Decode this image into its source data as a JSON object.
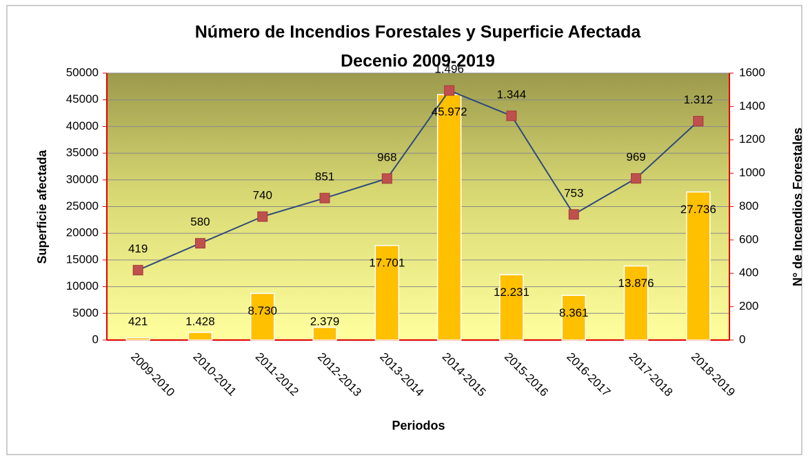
{
  "chart_data": {
    "type": "combo",
    "title": "Número de Incendios Forestales y Superficie Afectada",
    "subtitle": "Decenio 2009-2019",
    "x_label": "Periodos",
    "y_label": "Superficie afectada",
    "y2_label": "N° de Incendios Forestales",
    "categories": [
      "2009-2010",
      "2010-2011",
      "2011-2012",
      "2012-2013",
      "2013-2014",
      "2014-2015",
      "2015-2016",
      "2016-2017",
      "2017-2018",
      "2018-2019"
    ],
    "series": [
      {
        "type": "bar",
        "color": "#FFC000",
        "axis": "y",
        "values": [
          421,
          1428,
          8730,
          2379,
          17701,
          45972,
          12231,
          8361,
          13876,
          27736
        ],
        "value_labels": [
          "421",
          "1.428",
          "8.730",
          "2.379",
          "17.701",
          "45.972",
          "12.231",
          "8.361",
          "13.876",
          "27.736"
        ]
      },
      {
        "type": "line",
        "color": "#2E4A7A",
        "marker_color": "#C0504D",
        "axis": "y2",
        "values": [
          419,
          580,
          740,
          851,
          968,
          1496,
          1344,
          753,
          969,
          1312
        ],
        "value_labels": [
          "419",
          "580",
          "740",
          "851",
          "968",
          "1.496",
          "1.344",
          "753",
          "969",
          "1.312"
        ]
      }
    ],
    "ylim": [
      0,
      50000
    ],
    "yticks": [
      0,
      5000,
      10000,
      15000,
      20000,
      25000,
      30000,
      35000,
      40000,
      45000,
      50000
    ],
    "y2lim": [
      0,
      1600
    ],
    "y2ticks": [
      0,
      200,
      400,
      600,
      800,
      1000,
      1200,
      1400,
      1600
    ],
    "grid": true
  }
}
